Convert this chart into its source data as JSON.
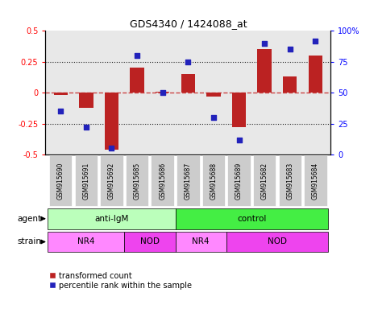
{
  "title": "GDS4340 / 1424088_at",
  "samples": [
    "GSM915690",
    "GSM915691",
    "GSM915692",
    "GSM915685",
    "GSM915686",
    "GSM915687",
    "GSM915688",
    "GSM915689",
    "GSM915682",
    "GSM915683",
    "GSM915684"
  ],
  "bar_values": [
    -0.02,
    -0.12,
    -0.46,
    0.2,
    0.01,
    0.15,
    -0.03,
    -0.28,
    0.35,
    0.13,
    0.3
  ],
  "percentile_values": [
    35,
    22,
    5,
    80,
    50,
    75,
    30,
    12,
    90,
    85,
    92
  ],
  "ylim_left": [
    -0.5,
    0.5
  ],
  "ylim_right": [
    0,
    100
  ],
  "yticks_left": [
    -0.5,
    -0.25,
    0.0,
    0.25,
    0.5
  ],
  "yticks_right": [
    0,
    25,
    50,
    75,
    100
  ],
  "ytick_labels_left": [
    "-0.5",
    "-0.25",
    "0",
    "0.25",
    "0.5"
  ],
  "ytick_labels_right": [
    "0",
    "25",
    "50",
    "75",
    "100%"
  ],
  "bar_color": "#bb2222",
  "dot_color": "#2222bb",
  "hline_color": "#cc4444",
  "dotted_line_color": "#222222",
  "agent_groups": [
    {
      "label": "anti-IgM",
      "start": 0,
      "end": 5,
      "color": "#bbffbb"
    },
    {
      "label": "control",
      "start": 5,
      "end": 11,
      "color": "#44ee44"
    }
  ],
  "strain_groups": [
    {
      "label": "NR4",
      "start": 0,
      "end": 3,
      "color": "#ff88ff"
    },
    {
      "label": "NOD",
      "start": 3,
      "end": 5,
      "color": "#ee44ee"
    },
    {
      "label": "NR4",
      "start": 5,
      "end": 7,
      "color": "#ff88ff"
    },
    {
      "label": "NOD",
      "start": 7,
      "end": 11,
      "color": "#ee44ee"
    }
  ],
  "legend_red_label": "transformed count",
  "legend_blue_label": "percentile rank within the sample",
  "agent_label": "agent",
  "strain_label": "strain",
  "plot_bg": "#e8e8e8",
  "sample_box_color": "#cccccc"
}
